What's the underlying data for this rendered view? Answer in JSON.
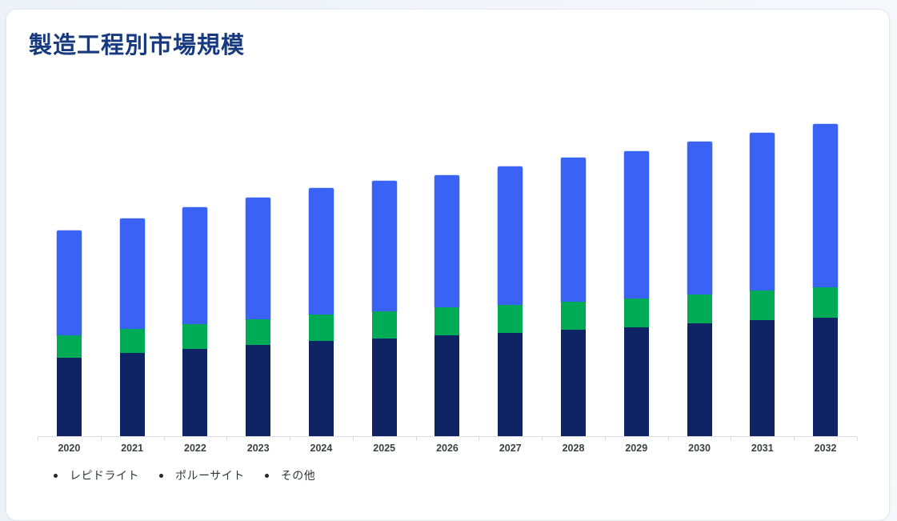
{
  "page": {
    "title": "製造工程別市場規模"
  },
  "chart_data": {
    "type": "bar",
    "subtype": "stacked-vertical",
    "title": "製造工程別市場規模",
    "categories": [
      "2020",
      "2021",
      "2022",
      "2023",
      "2024",
      "2025",
      "2026",
      "2027",
      "2028",
      "2029",
      "2030",
      "2031",
      "2032"
    ],
    "series": [
      {
        "name": "レピドライト",
        "color": "#0e2464",
        "values": [
          98,
          104,
          109,
          114,
          119,
          122,
          126,
          129,
          133,
          136,
          141,
          145,
          148
        ]
      },
      {
        "name": "ポルーサイト",
        "color": "#00ab55",
        "values": [
          28,
          30,
          31,
          32,
          33,
          34,
          35,
          35,
          35,
          36,
          36,
          37,
          38
        ]
      },
      {
        "name": "その他",
        "color": "#3a63f5",
        "values": [
          131,
          138,
          146,
          152,
          158,
          163,
          165,
          173,
          180,
          184,
          191,
          197,
          204
        ]
      }
    ],
    "xlabel": "",
    "ylabel": "",
    "ylim": [
      0,
      401
    ],
    "y_axis_tick_labels_visible": false,
    "grid": false,
    "legend_position": "bottom-left",
    "units": "relative height units (no numeric axis labels shown in chart)"
  },
  "legend": {
    "bullet_color": "#23272c"
  },
  "colors": {
    "title_text": "#16397f",
    "axis_line": "#d9dde3",
    "x_tick_label": "#3d4043",
    "legend_text": "#30363c",
    "card_background": "#ffffff",
    "card_border": "#e2e8f0",
    "page_background": "#f1f5fa"
  }
}
